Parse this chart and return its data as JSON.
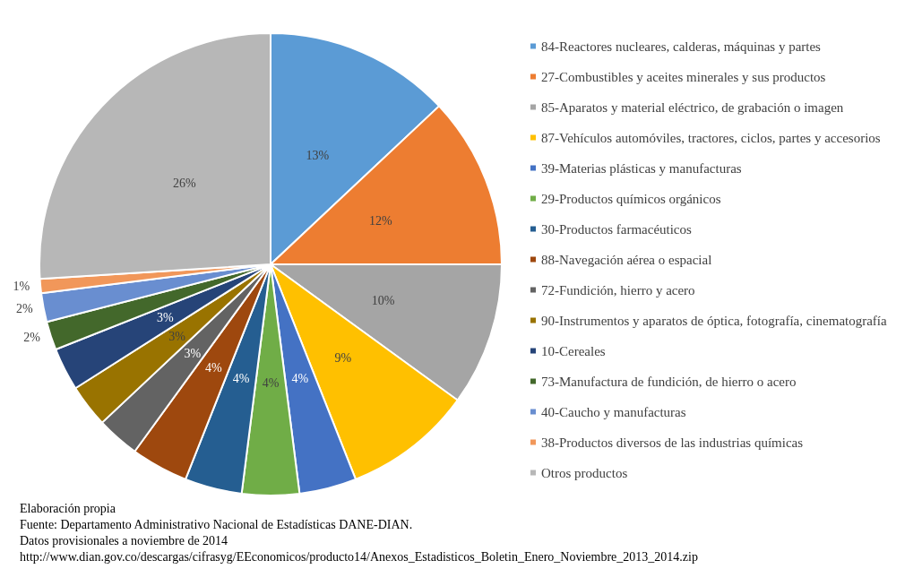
{
  "chart_data": {
    "type": "pie",
    "categories": [
      "84-Reactores nucleares, calderas, máquinas y partes",
      "27-Combustibles y aceites minerales y sus productos",
      "85-Aparatos y material eléctrico, de grabación o imagen",
      "87-Vehículos automóviles, tractores, ciclos, partes y accesorios",
      "39-Materias plásticas y manufacturas",
      "29-Productos químicos orgánicos",
      "30-Productos farmacéuticos",
      "88-Navegación aérea o espacial",
      "72-Fundición, hierro y acero",
      "90-Instrumentos y aparatos de óptica, fotografía, cinematografía",
      "10-Cereales",
      "73-Manufactura de fundición, de hierro o acero",
      "40-Caucho y manufacturas",
      "38-Productos diversos de las industrias químicas",
      "Otros productos"
    ],
    "values": [
      13,
      12,
      10,
      9,
      4,
      4,
      4,
      4,
      3,
      3,
      3,
      2,
      2,
      1,
      26
    ],
    "value_labels": [
      "13%",
      "12%",
      "10%",
      "9%",
      "4%",
      "4%",
      "4%",
      "4%",
      "3%",
      "3%",
      "3%",
      "2%",
      "2%",
      "1%",
      "26%"
    ],
    "colors": [
      "#5b9bd5",
      "#ed7d31",
      "#a5a5a5",
      "#ffc000",
      "#4472c4",
      "#70ad47",
      "#255e91",
      "#9e480e",
      "#636363",
      "#997300",
      "#264478",
      "#43682b",
      "#698ed0",
      "#f1975a",
      "#b7b7b7"
    ],
    "legend": "right",
    "annotations": [
      "Elaboración propia",
      "Fuente: Departamento Administrativo Nacional de Estadísticas DANE-DIAN.",
      "Datos provisionales a noviembre de 2014",
      "http://www.dian.gov.co/descargas/cifrasyg/EEconomicos/producto14/Anexos_Estadisticos_Boletin_Enero_Noviembre_2013_2014.zip"
    ]
  }
}
